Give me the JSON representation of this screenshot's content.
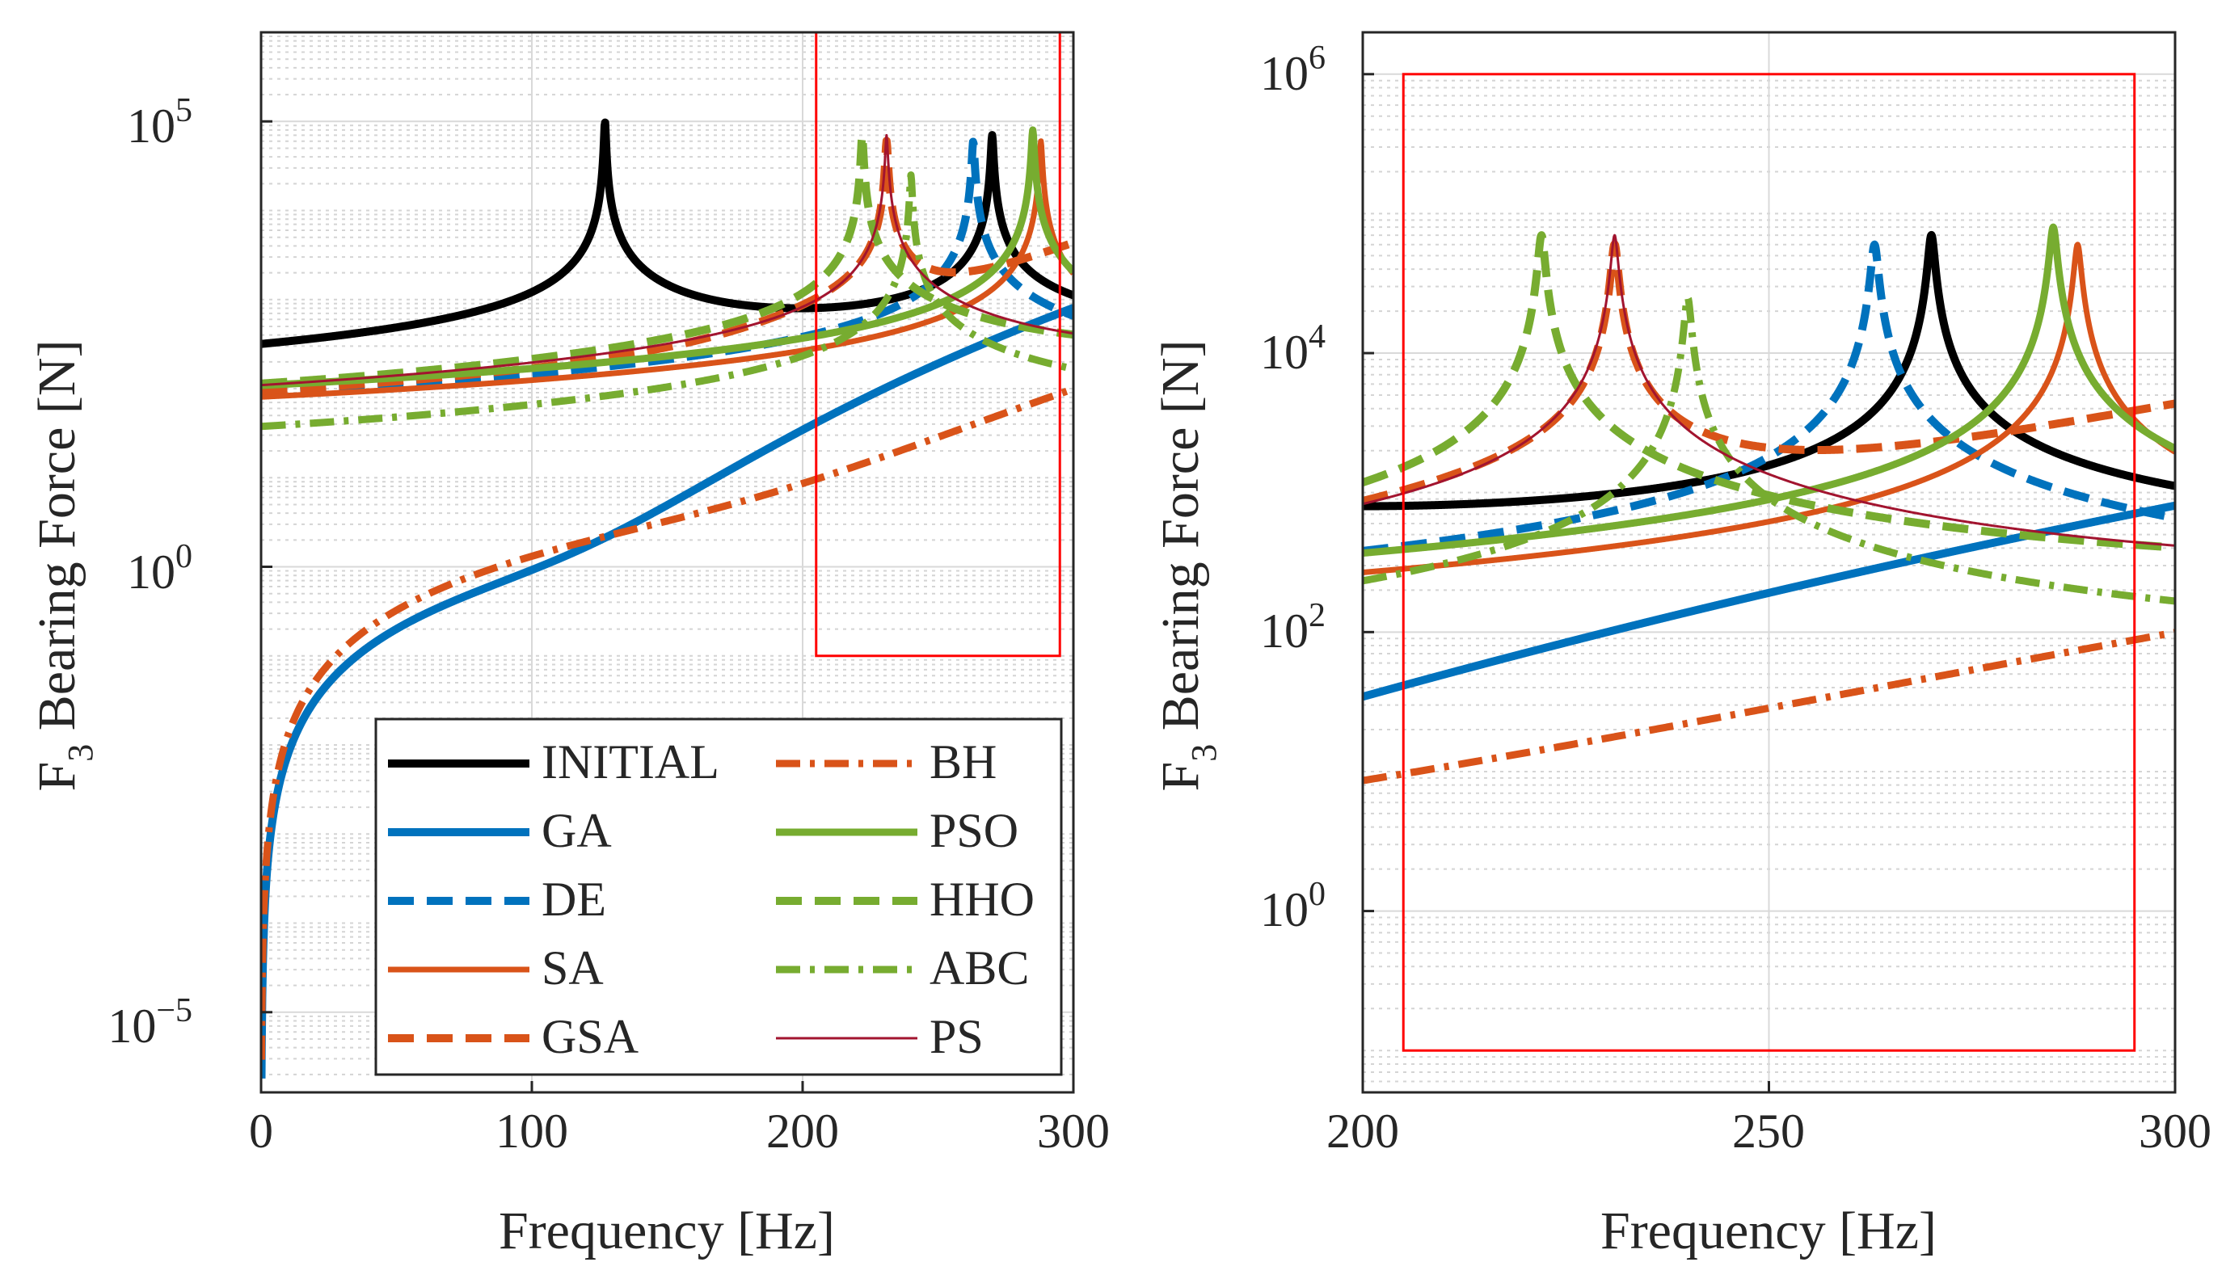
{
  "chart_data": [
    {
      "type": "line",
      "id": "left",
      "title": "",
      "xlabel": "Frequency [Hz]",
      "ylabel_main": "F",
      "ylabel_sub": "3",
      "ylabel_rest": " Bearing Force [N]",
      "xscale": "linear",
      "yscale": "log",
      "xlim": [
        0,
        300
      ],
      "ylim_log10": [
        -5.9,
        6
      ],
      "x_ticks": [
        0,
        100,
        200,
        300
      ],
      "x_tick_labels": [
        "0",
        "100",
        "200",
        "300"
      ],
      "y_ticks_log10": [
        -5,
        0,
        5
      ],
      "y_tick_labels": [
        {
          "base": "10",
          "exp": "−5"
        },
        {
          "base": "10",
          "exp": "0"
        },
        {
          "base": "10",
          "exp": "5"
        }
      ],
      "grid": true,
      "minor_grid": true,
      "legend_position": "lower-right",
      "legend": [
        "INITIAL",
        "GA",
        "DE",
        "SA",
        "GSA",
        "BH",
        "PSO",
        "HHO",
        "ABC",
        "PS"
      ],
      "zoom_box": {
        "x": [
          205,
          295
        ],
        "y_log10": [
          -1,
          6
        ]
      },
      "series": [
        {
          "name": "INITIAL",
          "color": "#000000",
          "style": "solid",
          "width": 10,
          "low_amp": 0.0012,
          "peaks": [
            {
              "f": 127,
              "peak": 100000,
              "bw": 2.2
            },
            {
              "f": 270,
              "peak": 70000,
              "bw": 2.8
            }
          ]
        },
        {
          "name": "GA",
          "color": "#0072BD",
          "style": "solid",
          "width": 10,
          "low_amp": 8e-05,
          "high_amp": 800,
          "high_f": 300
        },
        {
          "name": "DE",
          "color": "#0072BD",
          "style": "dashed",
          "width": 10,
          "low_amp": 0.00032,
          "peaks": [
            {
              "f": 263,
              "peak": 60000,
              "bw": 3
            }
          ]
        },
        {
          "name": "SA",
          "color": "#D95319",
          "style": "solid",
          "width": 7,
          "low_amp": 8e-05,
          "high_amp": 15,
          "high_f": 310,
          "peaks": [
            {
              "f": 288,
              "peak": 60000,
              "bw": 3
            }
          ]
        },
        {
          "name": "GSA",
          "color": "#D95319",
          "style": "dashed",
          "width": 10,
          "low_amp": 0.0004,
          "high_amp": 4000,
          "high_f": 300,
          "peaks": [
            {
              "f": 231,
              "peak": 60000,
              "bw": 2.8
            }
          ]
        },
        {
          "name": "BH",
          "color": "#D95319",
          "style": "dashdot",
          "width": 9,
          "low_amp": 0.00013,
          "high_amp": 100,
          "high_f": 305
        },
        {
          "name": "PSO",
          "color": "#77AC30",
          "style": "solid",
          "width": 9,
          "low_amp": 0.0001,
          "peaks": [
            {
              "f": 285,
              "peak": 80000,
              "bw": 3
            }
          ]
        },
        {
          "name": "HHO",
          "color": "#77AC30",
          "style": "dashed",
          "width": 10,
          "low_amp": 0.0008,
          "high_amp": 10,
          "high_f": 310,
          "peaks": [
            {
              "f": 222,
              "peak": 70000,
              "bw": 2.8
            }
          ]
        },
        {
          "name": "ABC",
          "color": "#77AC30",
          "style": "dashdot",
          "width": 9,
          "low_amp": 0.00018,
          "peaks": [
            {
              "f": 240,
              "peak": 25000,
              "bw": 2.8
            }
          ]
        },
        {
          "name": "PS",
          "color": "#A2142F",
          "style": "solid",
          "width": 3,
          "low_amp": 0.0003,
          "high_amp": 30,
          "high_f": 310,
          "peaks": [
            {
              "f": 231,
              "peak": 70000,
              "bw": 2.8
            }
          ]
        }
      ]
    },
    {
      "type": "line",
      "id": "right",
      "title": "",
      "xlabel": "Frequency [Hz]",
      "ylabel_main": "F",
      "ylabel_sub": "3",
      "ylabel_rest": " Bearing Force [N]",
      "xscale": "linear",
      "yscale": "log",
      "xlim": [
        200,
        300
      ],
      "ylim_log10": [
        -1.3,
        6.3
      ],
      "x_ticks": [
        200,
        250,
        300
      ],
      "x_tick_labels": [
        "200",
        "250",
        "300"
      ],
      "y_ticks_log10": [
        0,
        2,
        4,
        6
      ],
      "y_tick_labels": [
        {
          "base": "10",
          "exp": "0"
        },
        {
          "base": "10",
          "exp": "2"
        },
        {
          "base": "10",
          "exp": "4"
        },
        {
          "base": "10",
          "exp": "6"
        }
      ],
      "grid": true,
      "minor_grid": true,
      "zoom_box": {
        "x": [
          205,
          295
        ],
        "y_log10": [
          -1,
          6
        ]
      }
    }
  ]
}
